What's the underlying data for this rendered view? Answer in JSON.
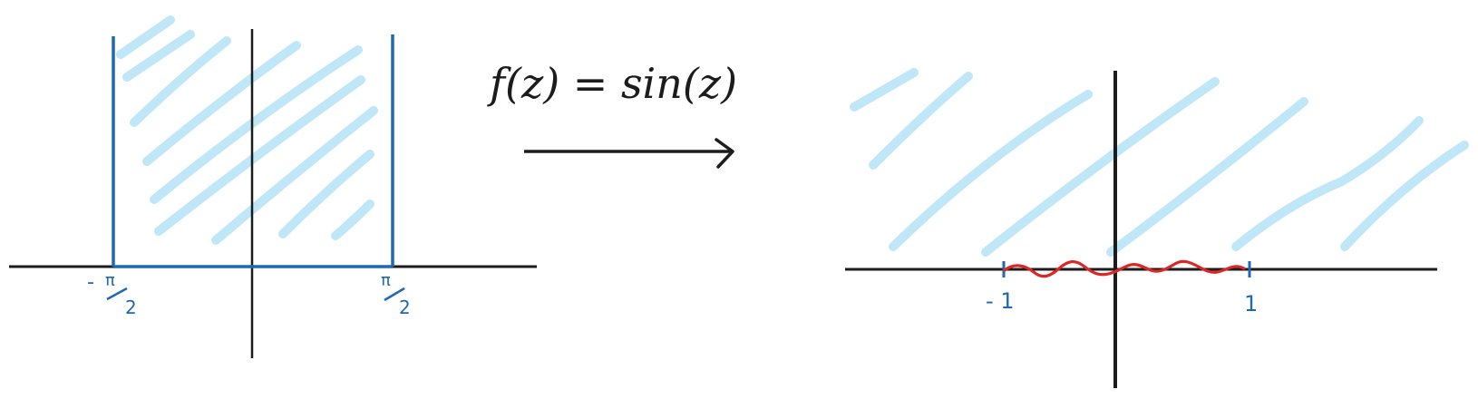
{
  "colors": {
    "axis": "#1c1c1c",
    "boundary": "#1d69b3",
    "hatch": "#bfe7f7",
    "wiggle": "#dd2626",
    "ink": "#1c1c1c"
  },
  "equation": {
    "text": "f(z) = sin(z)"
  },
  "left_plane": {
    "tick_left": {
      "pre": "-",
      "num": "π",
      "den": "2"
    },
    "tick_right": {
      "num": "π",
      "den": "2"
    }
  },
  "right_plane": {
    "tick_left": "- 1",
    "tick_right": "1"
  },
  "icons": {
    "arrow": "right-arrow-icon"
  }
}
